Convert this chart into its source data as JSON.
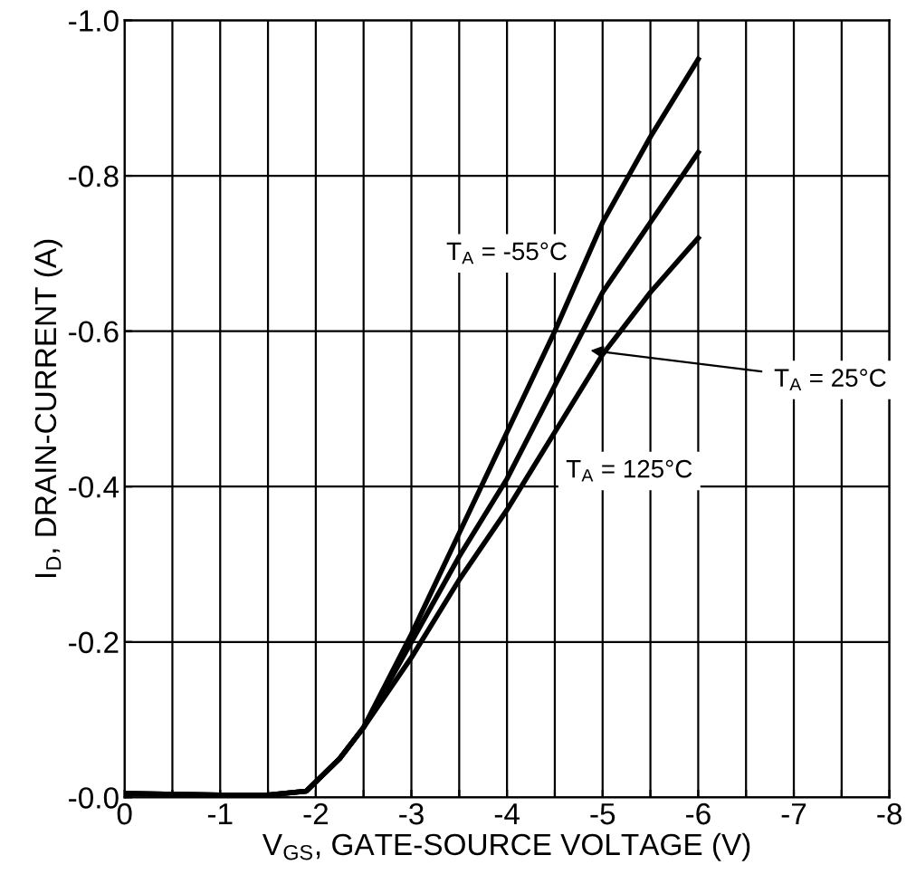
{
  "chart_data": {
    "type": "line",
    "xlabel": "V$_{GS}$, GATE-SOURCE VOLTAGE (V)",
    "ylabel": "I$_{D}$, DRAIN-CURRENT (A)",
    "x": [
      0,
      -1,
      -1.5,
      -1.9,
      -2,
      -2.25,
      -2.5,
      -3,
      -3.5,
      -4,
      -4.5,
      -5,
      -5.5,
      -6
    ],
    "series": [
      {
        "color": "#000000",
        "values": [
          -0.005,
          -0.003,
          -0.003,
          -0.008,
          -0.02,
          -0.05,
          -0.09,
          -0.21,
          -0.34,
          -0.47,
          -0.6,
          -0.74,
          -0.85,
          -0.95
        ]
      },
      {
        "color": "#000000",
        "values": [
          -0.005,
          -0.003,
          -0.003,
          -0.008,
          -0.02,
          -0.05,
          -0.09,
          -0.2,
          -0.31,
          -0.41,
          -0.53,
          -0.65,
          -0.74,
          -0.83
        ]
      },
      {
        "color": "#000000",
        "values": [
          -0.005,
          -0.003,
          -0.003,
          -0.008,
          -0.02,
          -0.05,
          -0.09,
          -0.18,
          -0.28,
          -0.37,
          -0.47,
          -0.57,
          -0.65,
          -0.72
        ]
      }
    ],
    "annotations": [
      "T$_{A}$ = -55°C",
      {
        "text": "T$_{A}$ = 25°C",
        "x": -4.82,
        "y": -0.576
      },
      "T$_{A}$ = 125°C"
    ],
    "xlim": [
      0,
      -8
    ],
    "ylim": [
      0,
      -1
    ],
    "xticks": [
      0,
      {
        "value": -0.5,
        "label": null
      },
      -1,
      {
        "value": -1.5,
        "label": null
      },
      -2,
      {
        "value": -2.5,
        "label": null
      },
      -3,
      {
        "value": -3.5,
        "label": null
      },
      -4,
      {
        "value": -4.5,
        "label": null
      },
      -5,
      {
        "value": -5.5,
        "label": null
      },
      -6,
      {
        "value": -6.5,
        "label": null
      },
      -7,
      {
        "value": -7.5,
        "label": null
      },
      -8
    ],
    "yticks": [
      {
        "value": 0,
        "label": "-0.0"
      },
      -0.2,
      -0.4,
      -0.6,
      -0.8,
      {
        "value": -1,
        "label": "-1.0"
      }
    ],
    "grid": true,
    "legend": false,
    "marker": "none",
    "line_style": "solid"
  }
}
